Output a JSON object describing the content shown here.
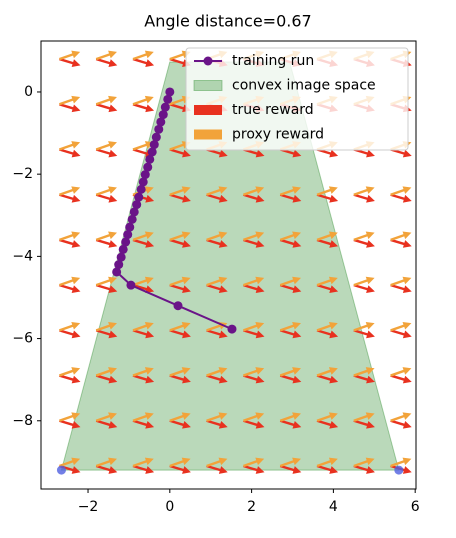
{
  "chart_data": {
    "type": "vector-field",
    "title": "Angle distance=0.67",
    "xlim": [
      -3.15,
      6.02
    ],
    "ylim": [
      -9.66,
      1.24
    ],
    "xticks": [
      {
        "value": -2,
        "label": "−2"
      },
      0,
      2,
      4,
      6
    ],
    "yticks": [
      0,
      {
        "value": -2,
        "label": "−2"
      },
      {
        "value": -4,
        "label": "−4"
      },
      {
        "value": -6,
        "label": "−6"
      },
      {
        "value": -8,
        "label": "−8"
      }
    ],
    "legend": "upper right",
    "convex_space": {
      "name": "convex image space",
      "color": "#2e8b2e",
      "x": [
        -2.65,
        0.0,
        2.93,
        5.6
      ],
      "y": [
        -9.2,
        0.73,
        0.73,
        -9.2
      ]
    },
    "corner_points": {
      "color": "#4f5fe0",
      "x": [
        -2.65,
        5.6
      ],
      "y": [
        -9.2,
        -9.2
      ]
    },
    "arrow_grid": {
      "x": [
        -2.7,
        -1.8,
        -0.9,
        0,
        0.9,
        1.8,
        2.7,
        3.6,
        4.5,
        5.4
      ],
      "y": [
        0.8,
        -0.3,
        -1.4,
        -2.5,
        -3.6,
        -4.7,
        -5.8,
        -6.9,
        -8.0,
        -9.1
      ]
    },
    "true_reward": {
      "name": "true reward",
      "color": "#e8311f",
      "direction": [
        1,
        -0.3
      ]
    },
    "proxy_reward": {
      "name": "proxy reward",
      "color": "#f2a33a",
      "direction": [
        1,
        0.35
      ]
    },
    "training_run": {
      "name": "training run",
      "color": "#6a1488",
      "x": [
        0,
        -0.05,
        -0.11,
        -0.16,
        -0.22,
        -0.27,
        -0.33,
        -0.38,
        -0.43,
        -0.49,
        -0.54,
        -0.6,
        -0.65,
        -0.7,
        -0.76,
        -0.81,
        -0.87,
        -0.92,
        -0.98,
        -1.03,
        -1.08,
        -1.14,
        -1.19,
        -1.25,
        -1.3,
        -0.95,
        0.2,
        1.52
      ],
      "y": [
        0,
        -0.18,
        -0.37,
        -0.55,
        -0.73,
        -0.91,
        -1.1,
        -1.28,
        -1.46,
        -1.64,
        -1.83,
        -2.01,
        -2.19,
        -2.37,
        -2.56,
        -2.74,
        -2.92,
        -3.1,
        -3.29,
        -3.47,
        -3.65,
        -3.83,
        -4.02,
        -4.2,
        -4.38,
        -4.7,
        -5.2,
        -5.77
      ]
    }
  }
}
